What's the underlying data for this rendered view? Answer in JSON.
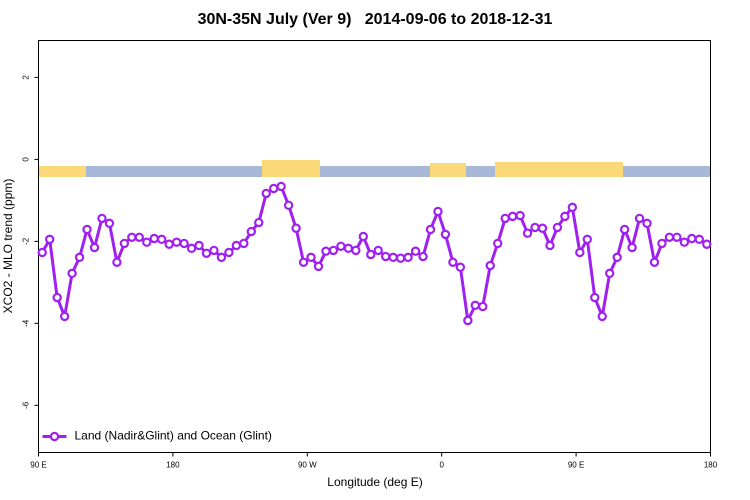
{
  "chart_data": {
    "type": "line",
    "title": "30N-35N July (Ver 9)   2014-09-06 to 2018-12-31",
    "x_label": "Longitude (deg E)",
    "y_label": "XCO2 - MLO trend (ppm)",
    "x": [
      92.5,
      97.5,
      102.5,
      107.5,
      112.5,
      117.5,
      122.5,
      127.5,
      132.5,
      137.5,
      142.5,
      147.5,
      152.5,
      157.5,
      162.5,
      167.5,
      172.5,
      177.5,
      182.5,
      187.5,
      192.5,
      197.5,
      202.5,
      207.5,
      212.5,
      217.5,
      222.5,
      227.5,
      232.5,
      237.5,
      242.5,
      247.5,
      252.5,
      257.5,
      262.5,
      267.5,
      272.5,
      277.5,
      282.5,
      287.5,
      292.5,
      297.5,
      302.5,
      307.5,
      312.5,
      317.5,
      322.5,
      327.5,
      332.5,
      337.5,
      342.5,
      347.5,
      352.5,
      357.5,
      362.5,
      367.5,
      372.5,
      377.5,
      382.5,
      387.5,
      392.5,
      397.5,
      402.5,
      407.5,
      412.5,
      417.5,
      422.5,
      427.5,
      432.5,
      437.5,
      442.5,
      447.5,
      452.5,
      457.5,
      462.5,
      467.5,
      472.5,
      477.5,
      482.5,
      487.5,
      492.5,
      497.5,
      502.5,
      507.5,
      512.5,
      517.5,
      522.5,
      527.5,
      532.5,
      537.5
    ],
    "series": [
      {
        "name": "Land (Nadir&Glint) and Ocean (Glint)",
        "color": "#a020f0",
        "values": [
          -2.27,
          -1.95,
          -3.37,
          -3.83,
          -2.78,
          -2.39,
          -1.71,
          -2.15,
          -1.44,
          -1.56,
          -2.51,
          -2.05,
          -1.9,
          -1.9,
          -2.02,
          -1.93,
          -1.95,
          -2.07,
          -2.02,
          -2.05,
          -2.17,
          -2.1,
          -2.29,
          -2.22,
          -2.39,
          -2.27,
          -2.1,
          -2.05,
          -1.76,
          -1.54,
          -0.83,
          -0.71,
          -0.66,
          -1.12,
          -1.68,
          -2.51,
          -2.39,
          -2.61,
          -2.24,
          -2.22,
          -2.12,
          -2.17,
          -2.22,
          -1.88,
          -2.32,
          -2.22,
          -2.37,
          -2.39,
          -2.41,
          -2.39,
          -2.24,
          -2.37,
          -1.71,
          -1.27,
          -1.83,
          -2.51,
          -2.63,
          -3.93,
          -3.56,
          -3.59,
          -2.59,
          -2.05,
          -1.44,
          -1.39,
          -1.37,
          -1.8,
          -1.66,
          -1.68,
          -2.1,
          -1.66,
          -1.39,
          -1.17,
          -2.27,
          -1.95,
          -3.37,
          -3.83,
          -2.78,
          -2.39,
          -1.71,
          -2.15,
          -1.44,
          -1.56,
          -2.51,
          -2.05,
          -1.9,
          -1.9,
          -2.02,
          -1.93,
          -1.95,
          -2.07
        ]
      }
    ],
    "xlim": [
      90,
      540
    ],
    "xticks": [
      {
        "value": 90,
        "label": "90 E"
      },
      180,
      {
        "value": 270,
        "label": "90 W"
      },
      {
        "value": 360,
        "label": "0"
      },
      {
        "value": 450,
        "label": "90 E"
      },
      {
        "value": 540,
        "label": "180"
      }
    ],
    "ylim": [
      -7.15,
      2.9
    ],
    "yticks": [
      2,
      0,
      -2,
      -4,
      -6
    ],
    "legend": "bottom-left"
  }
}
